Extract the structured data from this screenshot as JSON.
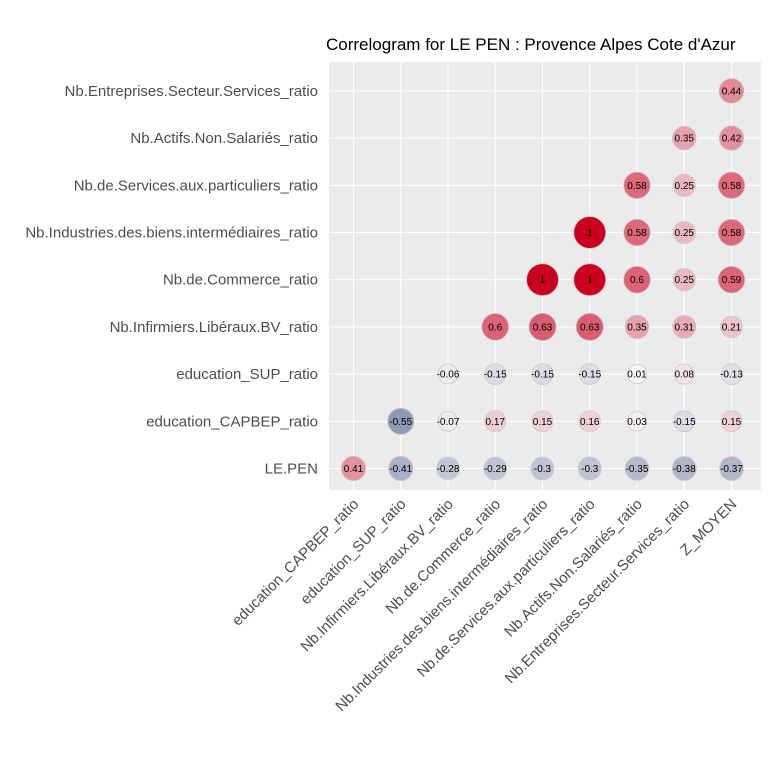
{
  "chart_data": {
    "type": "correlogram",
    "title": "Correlogram for LE PEN : Provence Alpes Cote d'Azur",
    "x_categories": [
      "education_CAPBEP_ratio",
      "education_SUP_ratio",
      "Nb.Infirmiers.Libéraux.BV_ratio",
      "Nb.de.Commerce_ratio",
      "Nb.Industries.des.biens.intermédiaires_ratio",
      "Nb.de.Services.aux.particuliers_ratio",
      "Nb.Actifs.Non.Salariés_ratio",
      "Nb.Entreprises.Secteur.Services_ratio",
      "Z_MOYEN"
    ],
    "y_categories": [
      "LE.PEN",
      "education_CAPBEP_ratio",
      "education_SUP_ratio",
      "Nb.Infirmiers.Libéraux.BV_ratio",
      "Nb.de.Commerce_ratio",
      "Nb.Industries.des.biens.intermédiaires_ratio",
      "Nb.de.Services.aux.particuliers_ratio",
      "Nb.Actifs.Non.Salariés_ratio",
      "Nb.Entreprises.Secteur.Services_ratio"
    ],
    "cells": [
      {
        "x": "education_CAPBEP_ratio",
        "y": "LE.PEN",
        "value": 0.41,
        "label": "0.41"
      },
      {
        "x": "education_SUP_ratio",
        "y": "LE.PEN",
        "value": -0.41,
        "label": "-0.41"
      },
      {
        "x": "Nb.Infirmiers.Libéraux.BV_ratio",
        "y": "LE.PEN",
        "value": -0.28,
        "label": "-0.28"
      },
      {
        "x": "Nb.de.Commerce_ratio",
        "y": "LE.PEN",
        "value": -0.29,
        "label": "-0.29"
      },
      {
        "x": "Nb.Industries.des.biens.intermédiaires_ratio",
        "y": "LE.PEN",
        "value": -0.3,
        "label": "-0.3"
      },
      {
        "x": "Nb.de.Services.aux.particuliers_ratio",
        "y": "LE.PEN",
        "value": -0.3,
        "label": "-0.3"
      },
      {
        "x": "Nb.Actifs.Non.Salariés_ratio",
        "y": "LE.PEN",
        "value": -0.35,
        "label": "-0.35"
      },
      {
        "x": "Nb.Entreprises.Secteur.Services_ratio",
        "y": "LE.PEN",
        "value": -0.38,
        "label": "-0.38"
      },
      {
        "x": "Z_MOYEN",
        "y": "LE.PEN",
        "value": -0.37,
        "label": "-0.37"
      },
      {
        "x": "education_SUP_ratio",
        "y": "education_CAPBEP_ratio",
        "value": -0.55,
        "label": "-0.55"
      },
      {
        "x": "Nb.Infirmiers.Libéraux.BV_ratio",
        "y": "education_CAPBEP_ratio",
        "value": -0.07,
        "label": "-0.07"
      },
      {
        "x": "Nb.de.Commerce_ratio",
        "y": "education_CAPBEP_ratio",
        "value": 0.17,
        "label": "0.17"
      },
      {
        "x": "Nb.Industries.des.biens.intermédiaires_ratio",
        "y": "education_CAPBEP_ratio",
        "value": 0.15,
        "label": "0.15"
      },
      {
        "x": "Nb.de.Services.aux.particuliers_ratio",
        "y": "education_CAPBEP_ratio",
        "value": 0.16,
        "label": "0.16"
      },
      {
        "x": "Nb.Actifs.Non.Salariés_ratio",
        "y": "education_CAPBEP_ratio",
        "value": 0.03,
        "label": "0.03"
      },
      {
        "x": "Nb.Entreprises.Secteur.Services_ratio",
        "y": "education_CAPBEP_ratio",
        "value": -0.15,
        "label": "-0.15"
      },
      {
        "x": "Z_MOYEN",
        "y": "education_CAPBEP_ratio",
        "value": 0.15,
        "label": "0.15"
      },
      {
        "x": "Nb.Infirmiers.Libéraux.BV_ratio",
        "y": "education_SUP_ratio",
        "value": -0.06,
        "label": "-0.06"
      },
      {
        "x": "Nb.de.Commerce_ratio",
        "y": "education_SUP_ratio",
        "value": -0.15,
        "label": "-0.15"
      },
      {
        "x": "Nb.Industries.des.biens.intermédiaires_ratio",
        "y": "education_SUP_ratio",
        "value": -0.15,
        "label": "-0.15"
      },
      {
        "x": "Nb.de.Services.aux.particuliers_ratio",
        "y": "education_SUP_ratio",
        "value": -0.15,
        "label": "-0.15"
      },
      {
        "x": "Nb.Actifs.Non.Salariés_ratio",
        "y": "education_SUP_ratio",
        "value": 0.01,
        "label": "0.01"
      },
      {
        "x": "Nb.Entreprises.Secteur.Services_ratio",
        "y": "education_SUP_ratio",
        "value": 0.08,
        "label": "0.08"
      },
      {
        "x": "Z_MOYEN",
        "y": "education_SUP_ratio",
        "value": -0.13,
        "label": "-0.13"
      },
      {
        "x": "Nb.de.Commerce_ratio",
        "y": "Nb.Infirmiers.Libéraux.BV_ratio",
        "value": 0.6,
        "label": "0.6"
      },
      {
        "x": "Nb.Industries.des.biens.intermédiaires_ratio",
        "y": "Nb.Infirmiers.Libéraux.BV_ratio",
        "value": 0.63,
        "label": "0.63"
      },
      {
        "x": "Nb.de.Services.aux.particuliers_ratio",
        "y": "Nb.Infirmiers.Libéraux.BV_ratio",
        "value": 0.63,
        "label": "0.63"
      },
      {
        "x": "Nb.Actifs.Non.Salariés_ratio",
        "y": "Nb.Infirmiers.Libéraux.BV_ratio",
        "value": 0.35,
        "label": "0.35"
      },
      {
        "x": "Nb.Entreprises.Secteur.Services_ratio",
        "y": "Nb.Infirmiers.Libéraux.BV_ratio",
        "value": 0.31,
        "label": "0.31"
      },
      {
        "x": "Z_MOYEN",
        "y": "Nb.Infirmiers.Libéraux.BV_ratio",
        "value": 0.21,
        "label": "0.21"
      },
      {
        "x": "Nb.Industries.des.biens.intermédiaires_ratio",
        "y": "Nb.de.Commerce_ratio",
        "value": 1,
        "label": "1"
      },
      {
        "x": "Nb.de.Services.aux.particuliers_ratio",
        "y": "Nb.de.Commerce_ratio",
        "value": 1,
        "label": "1"
      },
      {
        "x": "Nb.Actifs.Non.Salariés_ratio",
        "y": "Nb.de.Commerce_ratio",
        "value": 0.6,
        "label": "0.6"
      },
      {
        "x": "Nb.Entreprises.Secteur.Services_ratio",
        "y": "Nb.de.Commerce_ratio",
        "value": 0.25,
        "label": "0.25"
      },
      {
        "x": "Z_MOYEN",
        "y": "Nb.de.Commerce_ratio",
        "value": 0.59,
        "label": "0.59"
      },
      {
        "x": "Nb.de.Services.aux.particuliers_ratio",
        "y": "Nb.Industries.des.biens.intermédiaires_ratio",
        "value": 1,
        "label": "1"
      },
      {
        "x": "Nb.Actifs.Non.Salariés_ratio",
        "y": "Nb.Industries.des.biens.intermédiaires_ratio",
        "value": 0.58,
        "label": "0.58"
      },
      {
        "x": "Nb.Entreprises.Secteur.Services_ratio",
        "y": "Nb.Industries.des.biens.intermédiaires_ratio",
        "value": 0.25,
        "label": "0.25"
      },
      {
        "x": "Z_MOYEN",
        "y": "Nb.Industries.des.biens.intermédiaires_ratio",
        "value": 0.58,
        "label": "0.58"
      },
      {
        "x": "Nb.Actifs.Non.Salariés_ratio",
        "y": "Nb.de.Services.aux.particuliers_ratio",
        "value": 0.58,
        "label": "0.58"
      },
      {
        "x": "Nb.Entreprises.Secteur.Services_ratio",
        "y": "Nb.de.Services.aux.particuliers_ratio",
        "value": 0.25,
        "label": "0.25"
      },
      {
        "x": "Z_MOYEN",
        "y": "Nb.de.Services.aux.particuliers_ratio",
        "value": 0.58,
        "label": "0.58"
      },
      {
        "x": "Nb.Entreprises.Secteur.Services_ratio",
        "y": "Nb.Actifs.Non.Salariés_ratio",
        "value": 0.35,
        "label": "0.35"
      },
      {
        "x": "Z_MOYEN",
        "y": "Nb.Actifs.Non.Salariés_ratio",
        "value": 0.42,
        "label": "0.42"
      },
      {
        "x": "Z_MOYEN",
        "y": "Nb.Entreprises.Secteur.Services_ratio",
        "value": 0.44,
        "label": "0.44"
      }
    ],
    "grid": true,
    "legend": "none",
    "colors": {
      "panel_background": "#ebebeb",
      "grid_line": "#ffffff",
      "positive": "#ca0020",
      "neutral": "#f7f7f7",
      "negative": "#3b4a7e",
      "tick_label": "#4d4d4d",
      "title": "#000000"
    }
  }
}
